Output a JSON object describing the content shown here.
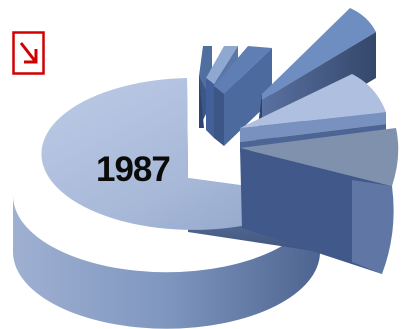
{
  "chart_data": {
    "type": "pie",
    "style": "3d-exploded",
    "center_label": "1987",
    "slices": [
      {
        "value": 74.6,
        "color": "#a8b9d8"
      },
      {
        "value": 1.5,
        "color": "#4f6fa0"
      },
      {
        "value": 1.5,
        "color": "#8fa8d0"
      },
      {
        "value": 1.5,
        "color": "#5f7fb4"
      },
      {
        "value": 5.5,
        "color": "#6e8dc0"
      },
      {
        "value": 5.0,
        "color": "#aebfe0"
      },
      {
        "value": 10.4,
        "color": "#7f91ad"
      }
    ]
  },
  "icons": {
    "corner": "arrow-down-right-icon",
    "corner_color": "#d10000"
  }
}
